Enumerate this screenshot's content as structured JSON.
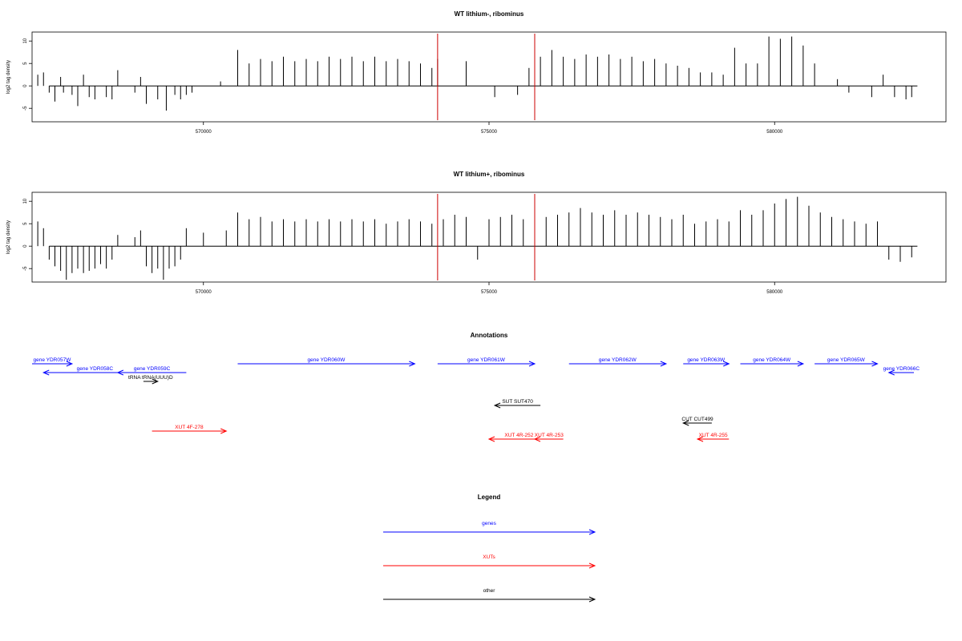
{
  "chart_data": [
    {
      "type": "bar",
      "title": "WT lithium-, ribominus",
      "xlabel": "",
      "ylabel": "log2 tag density",
      "xlim": [
        567000,
        583000
      ],
      "ylim": [
        -8,
        12
      ],
      "xticks": [
        570000,
        575000,
        580000
      ],
      "yticks": [
        -5,
        0,
        5,
        10
      ],
      "series": [
        {
          "x": [
            567100,
            567200,
            567300,
            567400,
            567500,
            567550,
            567700,
            567800,
            567900,
            568000,
            568100,
            568300,
            568400,
            568500,
            568800,
            568900,
            569000,
            569200,
            569350,
            569500,
            569600,
            569700,
            569800,
            570300,
            570600,
            570800,
            571000,
            571200,
            571400,
            571600,
            571800,
            572000,
            572200,
            572400,
            572600,
            572800,
            573000,
            573200,
            573400,
            573600,
            573800,
            574000,
            574100,
            574600,
            575100,
            575500,
            575700,
            575900,
            576100,
            576300,
            576500,
            576700,
            576900,
            577100,
            577300,
            577500,
            577700,
            577900,
            578100,
            578300,
            578500,
            578700,
            578900,
            579100,
            579300,
            579500,
            579700,
            579900,
            580100,
            580300,
            580500,
            580700,
            581100,
            581300,
            581700,
            581900,
            582100,
            582300,
            582400
          ],
          "values": [
            2.5,
            3,
            -1.5,
            -3.5,
            2,
            -1.5,
            -2,
            -4.5,
            2.5,
            -2.5,
            -3,
            -2.5,
            -3,
            3.5,
            -1.5,
            2,
            -4,
            -3,
            -5.5,
            -2,
            -3,
            -2,
            -1.5,
            1,
            8,
            5,
            6,
            5.5,
            6.5,
            5.5,
            6,
            5.5,
            6.5,
            6,
            6.5,
            5.5,
            6.5,
            5.5,
            6,
            5.5,
            5,
            4,
            6,
            5.5,
            -2.5,
            -2,
            4,
            6.5,
            8,
            6.5,
            6,
            7,
            6.5,
            7,
            6,
            6.5,
            5.5,
            6,
            5,
            4.5,
            4,
            3,
            3,
            2.5,
            8.5,
            5,
            5,
            11,
            10.5,
            11,
            9,
            5,
            1.5,
            -1.5,
            -2.5,
            2.5,
            -2.5,
            -3,
            -2.5
          ]
        }
      ],
      "vlines": [
        574100,
        575800
      ]
    },
    {
      "type": "bar",
      "title": "WT lithium+, ribominus",
      "xlabel": "",
      "ylabel": "log2 tag density",
      "xlim": [
        567000,
        583000
      ],
      "ylim": [
        -8,
        12
      ],
      "xticks": [
        570000,
        575000,
        580000
      ],
      "yticks": [
        -5,
        0,
        5,
        10
      ],
      "series": [
        {
          "x": [
            567100,
            567200,
            567300,
            567400,
            567500,
            567600,
            567700,
            567800,
            567900,
            568000,
            568100,
            568200,
            568300,
            568400,
            568500,
            568800,
            568900,
            569000,
            569100,
            569200,
            569300,
            569400,
            569500,
            569600,
            569700,
            570000,
            570400,
            570600,
            570800,
            571000,
            571200,
            571400,
            571600,
            571800,
            572000,
            572200,
            572400,
            572600,
            572800,
            573000,
            573200,
            573400,
            573600,
            573800,
            574000,
            574200,
            574400,
            574600,
            574800,
            575000,
            575200,
            575400,
            575600,
            575800,
            576000,
            576200,
            576400,
            576600,
            576800,
            577000,
            577200,
            577400,
            577600,
            577800,
            578000,
            578200,
            578400,
            578600,
            578800,
            579000,
            579200,
            579400,
            579600,
            579800,
            580000,
            580200,
            580400,
            580600,
            580800,
            581000,
            581200,
            581400,
            581600,
            581800,
            582000,
            582200,
            582400
          ],
          "values": [
            5.5,
            4,
            -3,
            -4.5,
            -5.5,
            -7.5,
            -6,
            -5,
            -6,
            -5.5,
            -5,
            -4,
            -5,
            -3,
            2.5,
            2,
            3.5,
            -4.5,
            -6,
            -5,
            -7.5,
            -5,
            -4.5,
            -3,
            4,
            3,
            3.5,
            7.5,
            6,
            6.5,
            5.5,
            6,
            5.5,
            6,
            5.5,
            6,
            5.5,
            6,
            5.5,
            6,
            5,
            5.5,
            6,
            5.5,
            5,
            6,
            7,
            6.5,
            -3,
            6,
            6.5,
            7,
            6,
            8,
            6.5,
            7,
            7.5,
            8.5,
            7.5,
            7,
            8,
            7,
            7.5,
            7,
            6.5,
            6,
            7,
            5,
            5.5,
            6,
            5.5,
            8,
            7,
            8,
            9.5,
            10.5,
            11,
            9,
            7.5,
            6.5,
            6,
            5.5,
            5,
            5.5,
            -3,
            -3.5,
            -2.5
          ]
        }
      ],
      "vlines": [
        574100,
        575800
      ]
    }
  ],
  "annotations": {
    "title": "Annotations",
    "items": [
      {
        "label": "gene YDR057W",
        "start": 566000,
        "end": 567700,
        "strand": "+",
        "row": 0,
        "color": "#0000ff"
      },
      {
        "label": "gene YDR058C",
        "start": 567200,
        "end": 569000,
        "strand": "-",
        "row": 1,
        "color": "#0000ff"
      },
      {
        "label": "gene YDR059C",
        "start": 568500,
        "end": 569700,
        "strand": "-",
        "row": 1,
        "color": "#0000ff"
      },
      {
        "label": "tRNA tRNA(UUU)D",
        "start": 568950,
        "end": 569200,
        "strand": "+",
        "row": 2,
        "color": "#000000"
      },
      {
        "label": "gene YDR060W",
        "start": 570600,
        "end": 573700,
        "strand": "+",
        "row": 0,
        "color": "#0000ff"
      },
      {
        "label": "gene YDR061W",
        "start": 574100,
        "end": 575800,
        "strand": "+",
        "row": 0,
        "color": "#0000ff"
      },
      {
        "label": "gene YDR062W",
        "start": 576400,
        "end": 578100,
        "strand": "+",
        "row": 0,
        "color": "#0000ff"
      },
      {
        "label": "gene YDR063W",
        "start": 578400,
        "end": 579200,
        "strand": "+",
        "row": 0,
        "color": "#0000ff"
      },
      {
        "label": "gene YDR064W",
        "start": 579400,
        "end": 580500,
        "strand": "+",
        "row": 0,
        "color": "#0000ff"
      },
      {
        "label": "gene YDR065W",
        "start": 580700,
        "end": 581800,
        "strand": "+",
        "row": 0,
        "color": "#0000ff"
      },
      {
        "label": "gene YDR066C",
        "start": 582000,
        "end": 582650,
        "strand": "-",
        "row": 1,
        "color": "#0000ff"
      },
      {
        "label": "SUT SUT470",
        "start": 575100,
        "end": 575900,
        "strand": "-",
        "row": 3,
        "color": "#000000"
      },
      {
        "label": "CUT CUT499",
        "start": 578400,
        "end": 578900,
        "strand": "-",
        "row": 4,
        "color": "#000000"
      },
      {
        "label": "XUT 4F-278",
        "start": 569100,
        "end": 570400,
        "strand": "+",
        "row": 5,
        "color": "#ff0000"
      },
      {
        "label": "XUT 4R-252",
        "start": 575000,
        "end": 576050,
        "strand": "-",
        "row": 6,
        "color": "#ff0000"
      },
      {
        "label": "XUT 4R-253",
        "start": 575800,
        "end": 576300,
        "strand": "-",
        "row": 6,
        "color": "#ff0000"
      },
      {
        "label": "XUT 4R-255",
        "start": 578650,
        "end": 579200,
        "strand": "-",
        "row": 6,
        "color": "#ff0000"
      }
    ]
  },
  "legend": {
    "title": "Legend",
    "items": [
      {
        "label": "genes",
        "color": "#0000ff"
      },
      {
        "label": "XUTs",
        "color": "#ff0000"
      },
      {
        "label": "other",
        "color": "#000000"
      }
    ]
  },
  "colors": {
    "density": "#000000",
    "vline": "#cc0000",
    "axis": "#000000"
  }
}
